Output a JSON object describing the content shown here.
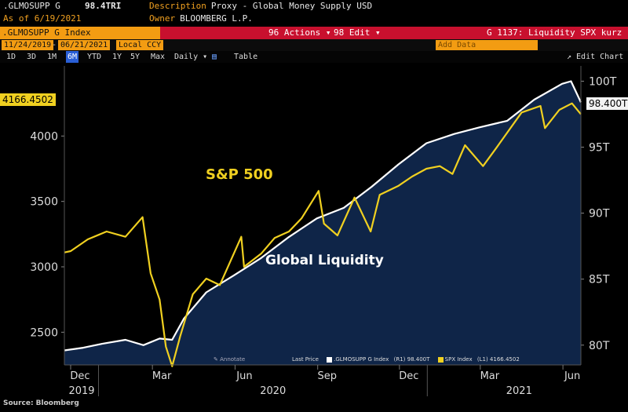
{
  "header": {
    "ticker": ".GLMOSUPP G",
    "last_value": "98.4TRI",
    "description_label": "Description",
    "description_value": "Proxy - Global Money Supply USD",
    "as_of": "As of 6/19/2021",
    "owner_label": "Owner",
    "owner_value": "BLOOMBERG L.P."
  },
  "toolbar": {
    "security": ".GLMOSUPP G Index",
    "actions_label": "96 Actions ▾",
    "edit_label": "98 Edit ▾",
    "chart_id": "G 1137: Liquidity SPX kurz",
    "start_date": "11/24/2019",
    "end_date": "06/21/2021",
    "currency": "Local CCY",
    "add_data": "Add Data",
    "edit_chart": "↗ Edit Chart",
    "ranges": [
      "1D",
      "3D",
      "1M",
      "6M",
      "YTD",
      "1Y",
      "5Y",
      "Max"
    ],
    "active_range": "6M",
    "frequency": "Daily ▾",
    "table_label": "Table"
  },
  "colors": {
    "sp500": "#f0d020",
    "liquidity": "#ffffff",
    "fill": "#0f2548",
    "background": "#000000",
    "accent_bar": "#c8102e",
    "amber": "#f39c12"
  },
  "chart_data": {
    "type": "line",
    "x_axis": {
      "range": [
        "2019-11-24",
        "2021-06-21"
      ],
      "ticks": [
        {
          "date": "2019-12-01",
          "label": "Dec"
        },
        {
          "date": "2020-03-01",
          "label": "Mar"
        },
        {
          "date": "2020-06-01",
          "label": "Jun"
        },
        {
          "date": "2020-09-01",
          "label": "Sep"
        },
        {
          "date": "2020-12-01",
          "label": "Dec"
        },
        {
          "date": "2021-03-01",
          "label": "Mar"
        },
        {
          "date": "2021-06-01",
          "label": "Jun"
        }
      ],
      "years": [
        {
          "date": "2019-12-01",
          "label": "2019"
        },
        {
          "date": "2020-07-01",
          "label": "2020"
        },
        {
          "date": "2021-04-01",
          "label": "2021"
        }
      ]
    },
    "left_axis": {
      "range": [
        2250,
        4500
      ],
      "ticks": [
        2500,
        3000,
        3500,
        4000
      ]
    },
    "right_axis": {
      "range": [
        78.5,
        100.8
      ],
      "ticks": [
        80,
        85,
        90,
        95,
        100
      ],
      "suffix": "T"
    },
    "grid": false,
    "series": [
      {
        "name": "SPX Index",
        "axis": "left",
        "points": [
          [
            "2019-11-24",
            3110
          ],
          [
            "2019-12-01",
            3120
          ],
          [
            "2019-12-20",
            3210
          ],
          [
            "2020-01-10",
            3270
          ],
          [
            "2020-01-31",
            3230
          ],
          [
            "2020-02-19",
            3380
          ],
          [
            "2020-02-28",
            2950
          ],
          [
            "2020-03-09",
            2750
          ],
          [
            "2020-03-16",
            2390
          ],
          [
            "2020-03-23",
            2240
          ],
          [
            "2020-04-01",
            2470
          ],
          [
            "2020-04-15",
            2790
          ],
          [
            "2020-04-30",
            2910
          ],
          [
            "2020-05-15",
            2860
          ],
          [
            "2020-06-08",
            3230
          ],
          [
            "2020-06-11",
            3000
          ],
          [
            "2020-06-30",
            3100
          ],
          [
            "2020-07-15",
            3220
          ],
          [
            "2020-07-31",
            3270
          ],
          [
            "2020-08-14",
            3370
          ],
          [
            "2020-09-02",
            3580
          ],
          [
            "2020-09-08",
            3330
          ],
          [
            "2020-09-23",
            3240
          ],
          [
            "2020-10-12",
            3530
          ],
          [
            "2020-10-30",
            3270
          ],
          [
            "2020-11-09",
            3550
          ],
          [
            "2020-11-30",
            3620
          ],
          [
            "2020-12-15",
            3690
          ],
          [
            "2020-12-31",
            3750
          ],
          [
            "2021-01-15",
            3770
          ],
          [
            "2021-01-29",
            3710
          ],
          [
            "2021-02-12",
            3930
          ],
          [
            "2021-03-04",
            3770
          ],
          [
            "2021-03-19",
            3910
          ],
          [
            "2021-04-16",
            4180
          ],
          [
            "2021-05-07",
            4230
          ],
          [
            "2021-05-12",
            4060
          ],
          [
            "2021-05-28",
            4200
          ],
          [
            "2021-06-11",
            4250
          ],
          [
            "2021-06-21",
            4166.45
          ]
        ]
      },
      {
        "name": ".GLMOSUPP G Index",
        "axis": "right",
        "points": [
          [
            "2019-11-24",
            79.6
          ],
          [
            "2019-12-15",
            79.8
          ],
          [
            "2020-01-05",
            80.1
          ],
          [
            "2020-01-31",
            80.4
          ],
          [
            "2020-02-20",
            80.0
          ],
          [
            "2020-03-09",
            80.5
          ],
          [
            "2020-03-23",
            80.4
          ],
          [
            "2020-04-05",
            82.0
          ],
          [
            "2020-04-30",
            84.0
          ],
          [
            "2020-05-31",
            85.3
          ],
          [
            "2020-06-30",
            86.6
          ],
          [
            "2020-07-31",
            88.2
          ],
          [
            "2020-08-31",
            89.6
          ],
          [
            "2020-09-30",
            90.4
          ],
          [
            "2020-10-31",
            92.0
          ],
          [
            "2020-11-30",
            93.7
          ],
          [
            "2020-12-31",
            95.3
          ],
          [
            "2021-01-31",
            96.0
          ],
          [
            "2021-02-28",
            96.5
          ],
          [
            "2021-03-31",
            97.0
          ],
          [
            "2021-04-30",
            98.6
          ],
          [
            "2021-05-31",
            99.8
          ],
          [
            "2021-06-10",
            100.0
          ],
          [
            "2021-06-21",
            98.4
          ]
        ]
      }
    ],
    "last_values": {
      "left": "4166.4502",
      "right": "98.400T"
    },
    "annotations": [
      {
        "text": "S&P 500",
        "series": "SPX Index"
      },
      {
        "text": "Global Liquidity",
        "series": ".GLMOSUPP G Index"
      }
    ],
    "legend": {
      "position": "bottom-right",
      "annotate": "✎ Annotate",
      "title": "Last Price",
      "entries": [
        {
          "label": ".GLMOSUPP G Index",
          "axis": "(R1)",
          "value": "98.400T",
          "color": "#ffffff"
        },
        {
          "label": "SPX Index",
          "axis": "(L1)",
          "value": "4166.4502",
          "color": "#f0d020"
        }
      ]
    },
    "source": "Source: Bloomberg"
  }
}
